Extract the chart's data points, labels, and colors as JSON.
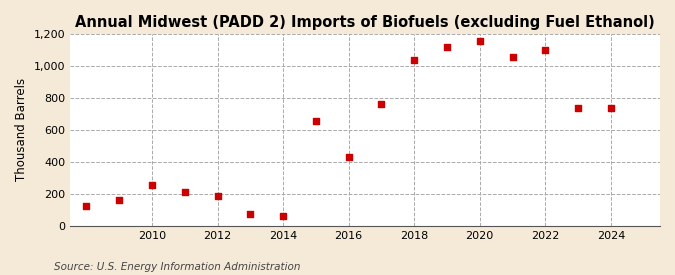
{
  "title": "Annual Midwest (PADD 2) Imports of Biofuels (excluding Fuel Ethanol)",
  "ylabel": "Thousand Barrels",
  "source": "Source: U.S. Energy Information Administration",
  "fig_background_color": "#f5ead8",
  "plot_background_color": "#ffffff",
  "marker_color": "#cc0000",
  "years": [
    2008,
    2009,
    2010,
    2011,
    2012,
    2013,
    2014,
    2015,
    2016,
    2017,
    2018,
    2019,
    2020,
    2021,
    2022,
    2023,
    2024
  ],
  "values": [
    125,
    160,
    255,
    210,
    185,
    75,
    60,
    655,
    430,
    760,
    1035,
    1120,
    1155,
    1055,
    1100,
    735,
    735
  ],
  "ylim": [
    0,
    1200
  ],
  "yticks": [
    0,
    200,
    400,
    600,
    800,
    1000,
    1200
  ],
  "xlim": [
    2007.5,
    2025.5
  ],
  "xticks": [
    2010,
    2012,
    2014,
    2016,
    2018,
    2020,
    2022,
    2024
  ],
  "title_fontsize": 10.5,
  "label_fontsize": 8.5,
  "tick_fontsize": 8,
  "source_fontsize": 7.5
}
